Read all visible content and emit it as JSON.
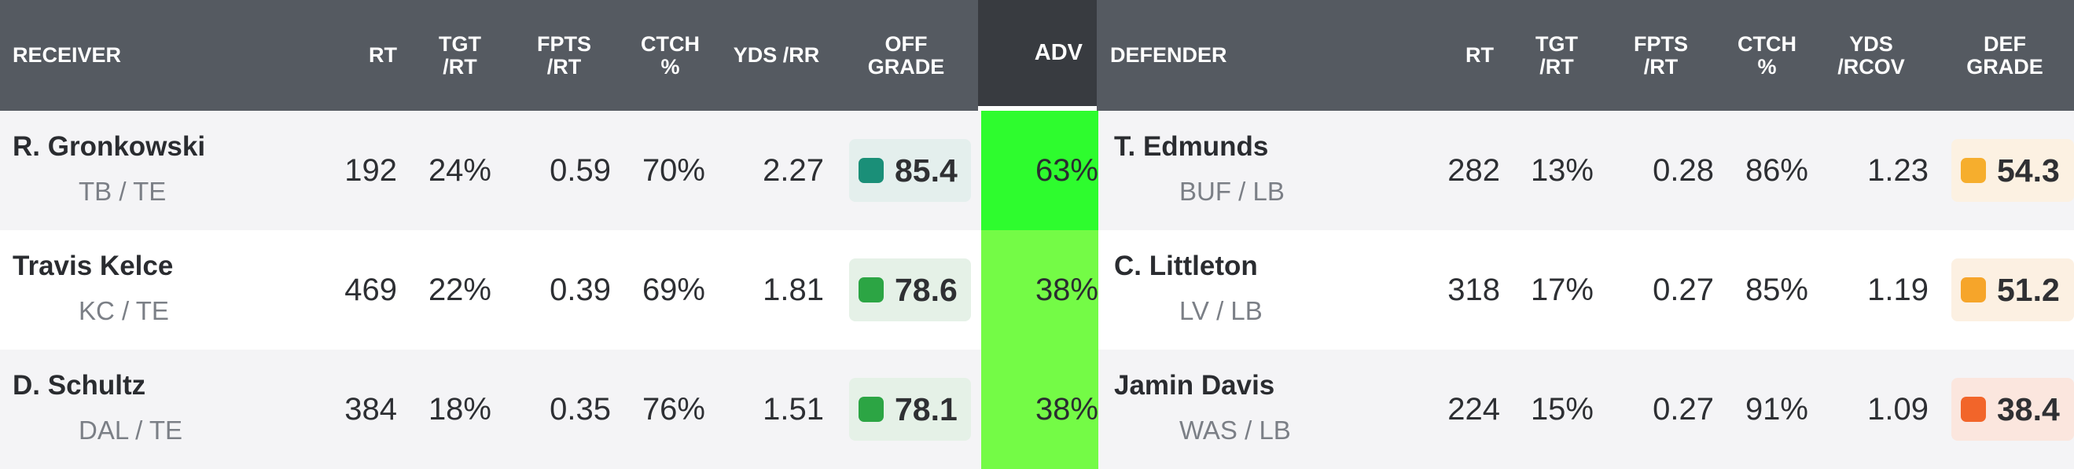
{
  "header": {
    "receiver": "RECEIVER",
    "rt": "RT",
    "tgt_rt": [
      "TGT",
      "/RT"
    ],
    "fpts_rt": [
      "FPTS",
      "/RT"
    ],
    "ctch": [
      "CTCH",
      "%"
    ],
    "yds_rr": "YDS /RR",
    "off_grade": [
      "OFF",
      "GRADE"
    ],
    "adv": "ADV",
    "defender": "DEFENDER",
    "def_rt": "RT",
    "def_tgt_rt": [
      "TGT",
      "/RT"
    ],
    "def_fpts_rt": [
      "FPTS",
      "/RT"
    ],
    "def_ctch": [
      "CTCH",
      "%"
    ],
    "def_yds_rcov": [
      "YDS",
      "/RCOV"
    ],
    "def_grade": [
      "DEF",
      "GRADE"
    ]
  },
  "rows": [
    {
      "receiver": "R. Gronkowski",
      "receiver_team": "TB / TE",
      "rt": "192",
      "tgt_rt": "24%",
      "fpts_rt": "0.59",
      "ctch": "70%",
      "yds_rr": "2.27",
      "off_grade": "85.4",
      "off_grade_color": "#1a8f78",
      "off_grade_bg": "#e4efed",
      "adv": "63%",
      "adv_color": "#2efc2e",
      "defender": "T. Edmunds",
      "defender_team": "BUF / LB",
      "def_rt": "282",
      "def_tgt_rt": "13%",
      "def_fpts_rt": "0.28",
      "def_ctch": "86%",
      "def_yds_rcov": "1.23",
      "def_grade": "54.3",
      "def_grade_color": "#f6ae2d",
      "def_grade_bg": "#fcf1e2"
    },
    {
      "receiver": "Travis Kelce",
      "receiver_team": "KC / TE",
      "rt": "469",
      "tgt_rt": "22%",
      "fpts_rt": "0.39",
      "ctch": "69%",
      "yds_rr": "1.81",
      "off_grade": "78.6",
      "off_grade_color": "#2ca544",
      "off_grade_bg": "#e5f1e7",
      "adv": "38%",
      "adv_color": "#74fb46",
      "defender": "C. Littleton",
      "defender_team": "LV / LB",
      "def_rt": "318",
      "def_tgt_rt": "17%",
      "def_fpts_rt": "0.27",
      "def_ctch": "85%",
      "def_yds_rcov": "1.19",
      "def_grade": "51.2",
      "def_grade_color": "#f6a52a",
      "def_grade_bg": "#fcf0e2"
    },
    {
      "receiver": "D. Schultz",
      "receiver_team": "DAL / TE",
      "rt": "384",
      "tgt_rt": "18%",
      "fpts_rt": "0.35",
      "ctch": "76%",
      "yds_rr": "1.51",
      "off_grade": "78.1",
      "off_grade_color": "#2ca544",
      "off_grade_bg": "#e5f1e7",
      "adv": "38%",
      "adv_color": "#74fb46",
      "defender": "Jamin Davis",
      "defender_team": "WAS / LB",
      "def_rt": "224",
      "def_tgt_rt": "15%",
      "def_fpts_rt": "0.27",
      "def_ctch": "91%",
      "def_yds_rcov": "1.09",
      "def_grade": "38.4",
      "def_grade_color": "#f2652a",
      "def_grade_bg": "#fbe6de"
    }
  ]
}
